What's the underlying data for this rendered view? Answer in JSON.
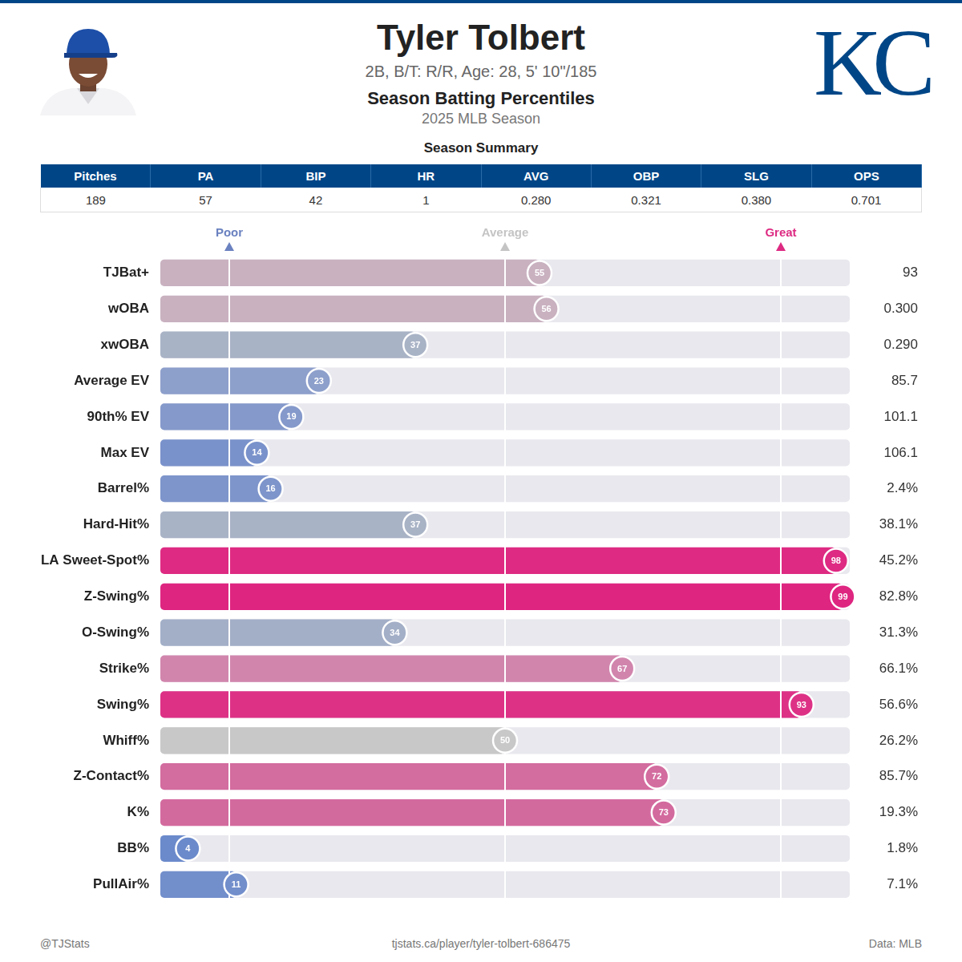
{
  "header": {
    "title": "Tyler Tolbert",
    "subtitle": "2B, B/T: R/R, Age: 28, 5' 10\"/185",
    "heading": "Season Batting Percentiles",
    "season": "2025 MLB Season",
    "logo_text": "KC"
  },
  "summary": {
    "title": "Season Summary",
    "columns": [
      "Pitches",
      "PA",
      "BIP",
      "HR",
      "AVG",
      "OBP",
      "SLG",
      "OPS"
    ],
    "values": [
      "189",
      "57",
      "42",
      "1",
      "0.280",
      "0.321",
      "0.380",
      "0.701"
    ]
  },
  "chart_data": {
    "type": "bar",
    "orientation": "horizontal",
    "categories": [
      "TJBat+",
      "wOBA",
      "xwOBA",
      "Average EV",
      "90th% EV",
      "Max EV",
      "Barrel%",
      "Hard-Hit%",
      "LA Sweet-Spot%",
      "Z-Swing%",
      "O-Swing%",
      "Strike%",
      "Swing%",
      "Whiff%",
      "Z-Contact%",
      "K%",
      "BB%",
      "PullAir%"
    ],
    "values": [
      55,
      56,
      37,
      23,
      19,
      14,
      16,
      37,
      98,
      99,
      34,
      67,
      93,
      50,
      72,
      73,
      4,
      11
    ],
    "colors": [
      "#c9b1c0",
      "#c9b1c0",
      "#a9b3c6",
      "#8d9fcb",
      "#8599cb",
      "#7a92cb",
      "#7e95cb",
      "#a9b3c6",
      "#de2a82",
      "#de2580",
      "#a3afc7",
      "#d185ad",
      "#dd3186",
      "#c8c8c8",
      "#d36c9f",
      "#d36a9e",
      "#6b8acb",
      "#728ecb"
    ],
    "stat_values": [
      "93",
      "0.300",
      "0.290",
      "85.7",
      "101.1",
      "106.1",
      "2.4%",
      "38.1%",
      "45.2%",
      "82.8%",
      "31.3%",
      "66.1%",
      "56.6%",
      "26.2%",
      "85.7%",
      "19.3%",
      "1.8%",
      "7.1%"
    ],
    "xlim": [
      0,
      100
    ],
    "xticks": [
      {
        "value": 10,
        "label": "Poor"
      },
      {
        "value": 50,
        "label": "Average"
      },
      {
        "value": 90,
        "label": "Great"
      }
    ],
    "grid": true,
    "data_labels": true
  },
  "footer": {
    "left": "@TJStats",
    "center": "tjstats.ca/player/tyler-tolbert-686475",
    "right": "Data: MLB"
  }
}
